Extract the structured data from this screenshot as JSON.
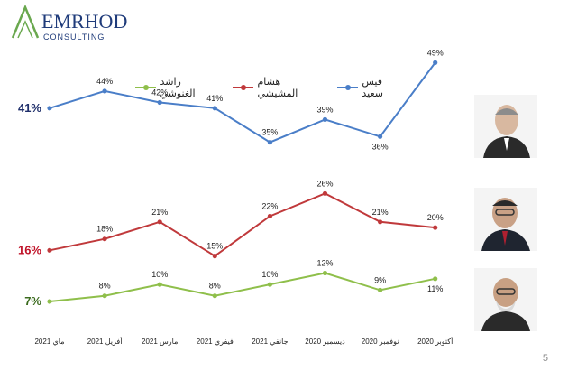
{
  "logo": {
    "name": "EMRHOD",
    "sub": "CONSULTING"
  },
  "page_number": "5",
  "colors": {
    "blue": "#4a7ec8",
    "red": "#c0393b",
    "green": "#8fbf4b",
    "side_blue": "#1f2f6b",
    "side_red": "#c0142a",
    "side_green": "#3b6b1e"
  },
  "chart_data": {
    "type": "line",
    "categories": [
      "ماي 2021",
      "أفريل 2021",
      "مارس 2021",
      "فيفري 2021",
      "جانفي 2021",
      "ديسمبر 2020",
      "نوفمبر 2020",
      "أكتوبر 2020"
    ],
    "series": [
      {
        "name": "قيس سعيد",
        "values": [
          41,
          44,
          42,
          41,
          35,
          39,
          36,
          49
        ],
        "labels": [
          "41%",
          "44%",
          "42%",
          "41%",
          "35%",
          "39%",
          "36%",
          "49%"
        ]
      },
      {
        "name": "هشام المشيشي",
        "values": [
          16,
          18,
          21,
          15,
          22,
          26,
          21,
          20
        ],
        "labels": [
          "16%",
          "18%",
          "21%",
          "15%",
          "22%",
          "26%",
          "21%",
          "20%"
        ]
      },
      {
        "name": "راشد الغنوشي",
        "values": [
          7,
          8,
          10,
          8,
          10,
          12,
          9,
          11
        ],
        "labels": [
          "7%",
          "8%",
          "10%",
          "8%",
          "10%",
          "12%",
          "9%",
          "11%"
        ]
      }
    ],
    "legend_position": "top",
    "grid": false
  },
  "photos": [
    {
      "icon": "portrait-kais-saied-icon"
    },
    {
      "icon": "portrait-hichem-mechichi-icon"
    },
    {
      "icon": "portrait-rached-ghannouchi-icon"
    }
  ]
}
